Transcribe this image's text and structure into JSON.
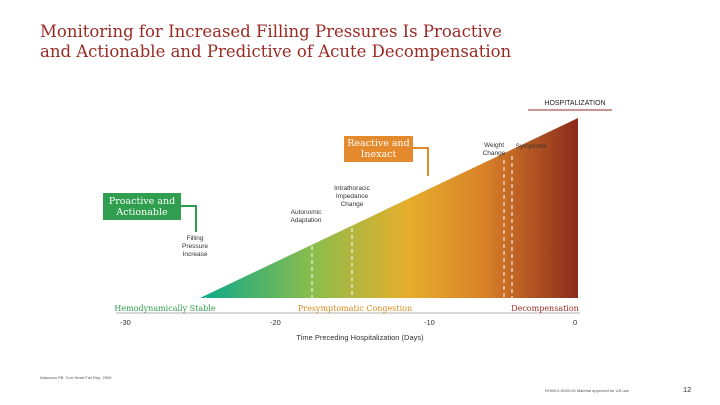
{
  "title_line1": "Monitoring for Increased Filling Pressures Is Proactive",
  "title_line2": "and Actionable and Predictive of Acute Decompensation",
  "hospitalization": "HOSPITALIZATION",
  "box_proactive": "Proactive and Actionable",
  "box_reactive": "Reactive and Inexact",
  "markers": {
    "weight_change": "Weight Change",
    "symptoms": "Symptoms",
    "impedance": "Intrathoracic Impedance Change",
    "autonomic": "Autonomic Adaptation",
    "filling": "Filling Pressure Increase"
  },
  "stages": {
    "stable": "Hemodynamically Stable",
    "presymptomatic": "Presymptomatic Congestion",
    "decompensation": "Decompensation"
  },
  "x_ticks": [
    "-30",
    "-20",
    "-10",
    "0"
  ],
  "x_label": "Time Preceding Hospitalization (Days)",
  "footnote_left": "Adamson PB. Curr Heart Fail Rep. 2009",
  "footnote_right": "RH0001-0000-00 Material approved for US use",
  "page_number": "12",
  "colors": {
    "title": "#9b2a23",
    "green": "#2f9e4e",
    "orange": "#e58a2c",
    "stable_stage": "#2f9e4e",
    "presymptomatic_stage": "#d98a1e",
    "decompensation_stage": "#9b2a23"
  }
}
